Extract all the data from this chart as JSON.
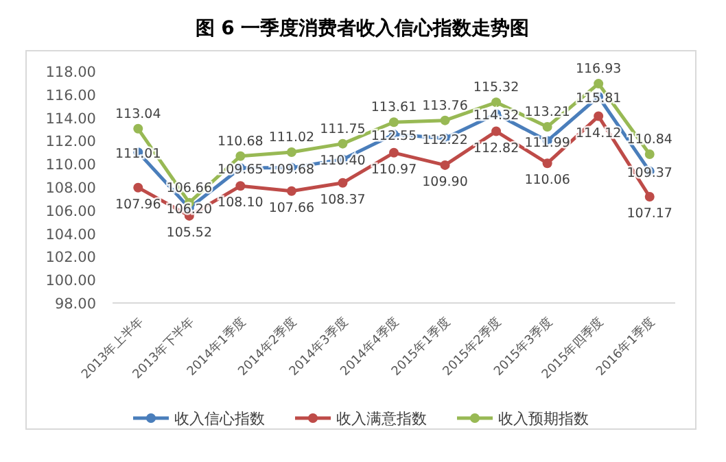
{
  "chart_data": {
    "type": "line",
    "title": "图 6    一季度消费者收入信心指数走势图",
    "categories": [
      "2013年上半年",
      "2013年下半年",
      "2014年1季度",
      "2014年2季度",
      "2014年3季度",
      "2014年4季度",
      "2015年1季度",
      "2015年2季度",
      "2015年3季度",
      "2015年四季度",
      "2016年1季度"
    ],
    "series": [
      {
        "name": "收入信心指数",
        "color": "#4a7ebb",
        "values": [
          111.01,
          106.2,
          109.65,
          109.68,
          110.4,
          112.55,
          112.22,
          114.32,
          111.99,
          115.81,
          109.37
        ],
        "value_labels": [
          "111.01",
          "106.20",
          "109.65",
          "109.68",
          "110.40",
          "112.55",
          "112.22",
          "114.32",
          "111.99",
          "115.81",
          "109.37"
        ]
      },
      {
        "name": "收入满意指数",
        "color": "#be4b48",
        "values": [
          107.96,
          105.52,
          108.1,
          107.66,
          108.37,
          110.97,
          109.9,
          112.82,
          110.06,
          114.12,
          107.17
        ],
        "value_labels": [
          "107.96",
          "105.52",
          "108.10",
          "107.66",
          "108.37",
          "110.97",
          "109.90",
          "112.82",
          "110.06",
          "114.12",
          "107.17"
        ]
      },
      {
        "name": "收入预期指数",
        "color": "#98b954",
        "values": [
          113.04,
          106.66,
          110.68,
          111.02,
          111.75,
          113.61,
          113.76,
          115.32,
          113.21,
          116.93,
          110.84
        ],
        "value_labels": [
          "113.04",
          "106.66",
          "110.68",
          "111.02",
          "111.75",
          "113.61",
          "113.76",
          "115.32",
          "113.21",
          "116.93",
          "110.84"
        ]
      }
    ],
    "ylim": [
      98,
      118
    ],
    "yticks": [
      {
        "value": 98,
        "label": "98.00"
      },
      {
        "value": 100,
        "label": "100.00"
      },
      {
        "value": 102,
        "label": "102.00"
      },
      {
        "value": 104,
        "label": "104.00"
      },
      {
        "value": 106,
        "label": "106.00"
      },
      {
        "value": 108,
        "label": "108.00"
      },
      {
        "value": 110,
        "label": "110.00"
      },
      {
        "value": 112,
        "label": "112.00"
      },
      {
        "value": 114,
        "label": "114.00"
      },
      {
        "value": 116,
        "label": "116.00"
      },
      {
        "value": 118,
        "label": "118.00"
      }
    ],
    "marker": "circle",
    "legend": "bottom",
    "grid": false
  }
}
